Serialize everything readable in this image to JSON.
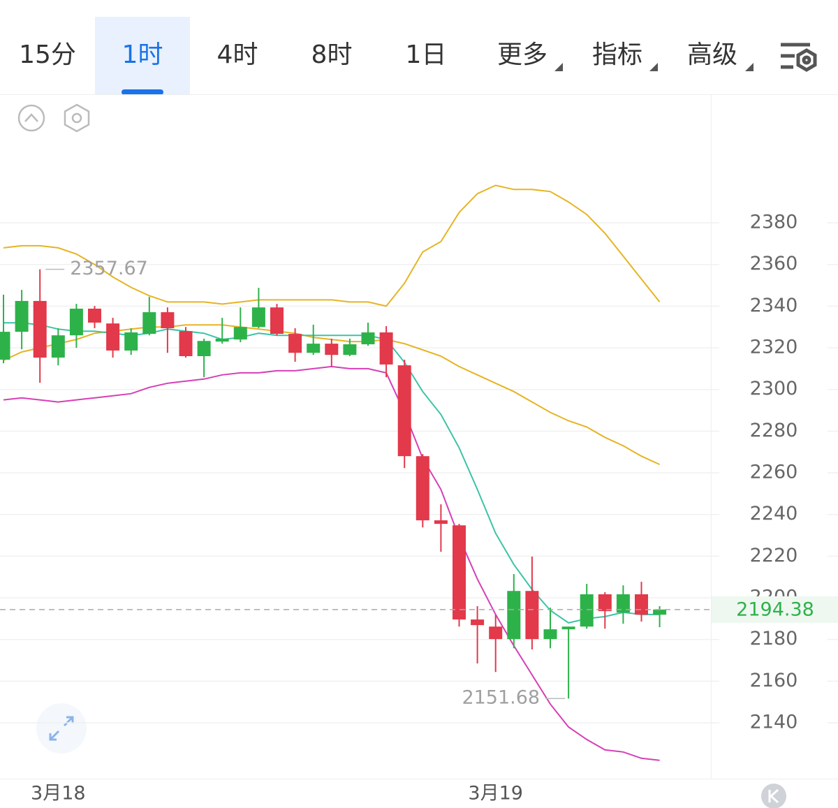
{
  "tabs": [
    "15分",
    "1时",
    "4时",
    "8时",
    "1日",
    "更多",
    "指标",
    "高级"
  ],
  "active_tab": 1,
  "chart_data": {
    "type": "candlestick",
    "categories": [
      null,
      null,
      null,
      "3月18",
      null,
      null,
      null,
      null,
      null,
      null,
      null,
      null,
      null,
      null,
      null,
      null,
      null,
      null,
      null,
      null,
      null,
      null,
      null,
      null,
      null,
      null,
      null,
      "3月19",
      null,
      null,
      null,
      null,
      null,
      null,
      null,
      null,
      null
    ],
    "open": [
      2314.3,
      2327.7,
      2342.5,
      2315.3,
      2326.0,
      2338.8,
      2331.7,
      2318.7,
      2326.7,
      2337.1,
      2328.0,
      2316.0,
      2323.0,
      2324.0,
      2330.0,
      2339.4,
      2326.7,
      2317.6,
      2322.0,
      2316.6,
      2321.7,
      2327.4,
      2311.6,
      2268.0,
      2237.2,
      2234.8,
      2189.6,
      2186.2,
      2180.2,
      2203.3,
      2180.2,
      2184.9,
      2186.2,
      2201.7,
      2192.9,
      2201.7,
      2191.9
    ],
    "high": [
      2345.5,
      2347.8,
      2357.67,
      2329.4,
      2341.1,
      2340.1,
      2334.4,
      2329.4,
      2344.5,
      2339.4,
      2330.0,
      2324.4,
      2334.4,
      2339.4,
      2348.8,
      2341.1,
      2329.4,
      2331.1,
      2324.4,
      2324.4,
      2332.1,
      2330.4,
      2314.3,
      2269.0,
      2244.9,
      2235.5,
      2196.0,
      2191.9,
      2211.4,
      2219.8,
      2195.3,
      2186.2,
      2206.7,
      2202.7,
      2206.0,
      2207.7,
      2196.0
    ],
    "low": [
      2312.6,
      2319.3,
      2303.2,
      2311.6,
      2320.0,
      2329.4,
      2315.3,
      2316.6,
      2326.0,
      2317.6,
      2315.3,
      2305.9,
      2322.0,
      2322.7,
      2329.4,
      2326.0,
      2313.3,
      2316.6,
      2310.9,
      2316.0,
      2321.0,
      2305.9,
      2262.3,
      2233.8,
      2222.1,
      2186.2,
      2168.5,
      2164.4,
      2175.8,
      2175.2,
      2175.8,
      2151.68,
      2185.2,
      2185.2,
      2187.6,
      2188.6,
      2185.9
    ],
    "close": [
      2327.7,
      2342.5,
      2315.3,
      2326.0,
      2338.8,
      2332.1,
      2318.7,
      2327.4,
      2337.1,
      2329.4,
      2316.0,
      2323.3,
      2324.4,
      2330.0,
      2339.4,
      2326.7,
      2317.6,
      2322.0,
      2316.6,
      2321.7,
      2327.4,
      2312.0,
      2268.0,
      2237.2,
      2235.5,
      2189.6,
      2186.9,
      2180.2,
      2203.3,
      2180.2,
      2184.9,
      2186.2,
      2201.7,
      2193.6,
      2201.7,
      2191.9,
      2194.38
    ],
    "up_color": "#2db24a",
    "down_color": "#e2394b",
    "series": [
      {
        "color": "#e6b422",
        "values": [
          2368,
          2369,
          2369,
          2368,
          2365,
          2360,
          2354,
          2349,
          2345,
          2342,
          2342,
          2342,
          2341,
          2342,
          2343,
          2343,
          2343,
          2343,
          2343,
          2342,
          2342,
          2340,
          2351,
          2366,
          2371,
          2385,
          2394,
          2398,
          2396,
          2396,
          2395,
          2390,
          2384,
          2375,
          2364,
          2353,
          2342
        ]
      },
      {
        "color": "#e6b422",
        "values": [
          2314,
          2318,
          2320,
          2322,
          2324,
          2327,
          2328,
          2329,
          2330,
          2330,
          2331,
          2331,
          2331,
          2330,
          2329,
          2328,
          2327,
          2325,
          2324,
          2323,
          2323,
          2324,
          2322,
          2319,
          2316,
          2311,
          2307,
          2303,
          2299,
          2294,
          2289,
          2285,
          2282,
          2277,
          2273,
          2268,
          2264
        ]
      },
      {
        "color": "#d63fb6",
        "values": [
          2295,
          2296,
          2295,
          2294,
          2295,
          2296,
          2297,
          2298,
          2301,
          2303,
          2304,
          2305,
          2307,
          2308,
          2308,
          2309,
          2309,
          2310,
          2311,
          2310,
          2310,
          2308,
          2289,
          2267,
          2252,
          2229,
          2209,
          2192,
          2177,
          2163,
          2149,
          2138,
          2132,
          2127,
          2126,
          2123,
          2122
        ]
      },
      {
        "color": "#3cc3a6",
        "values": [
          2332,
          2332,
          2331,
          2329,
          2328,
          2328,
          2327,
          2326,
          2327,
          2329,
          2328,
          2327,
          2324,
          2325,
          2327,
          2326,
          2326,
          2326,
          2326,
          2326,
          2326,
          2324,
          2313,
          2299,
          2288,
          2272,
          2252,
          2231,
          2216,
          2204,
          2194,
          2188,
          2190,
          2191,
          2193,
          2192,
          2192
        ]
      }
    ],
    "ylim": [
      2113.2,
      2441.7
    ],
    "yticks": [
      2140,
      2160,
      2180,
      2200,
      2220,
      2240,
      2260,
      2280,
      2300,
      2320,
      2340,
      2360,
      2380
    ],
    "grid": true,
    "price_color": "#2db24a"
  }
}
